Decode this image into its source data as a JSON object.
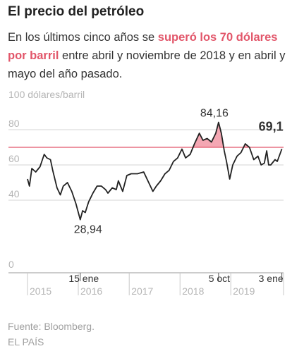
{
  "header": {
    "title": "El precio del petróleo",
    "subtitle_pre": "En los últimos cinco años se ",
    "subtitle_highlight": "superó los 70 dólares por barril",
    "subtitle_post": " entre abril y noviembre de 2018 y en abril y mayo del año pasado."
  },
  "footer": {
    "source": "Fuente: Bloomberg.",
    "brand": "EL PAÍS"
  },
  "colors": {
    "line": "#222222",
    "threshold": "#e2566a",
    "fill": "#f4a7b3",
    "grid": "#d4d4d4",
    "tick_text": "#b5b5b5"
  },
  "chart_data": {
    "type": "line",
    "unit_label": "100 dólares/barril",
    "ylim": [
      0,
      100
    ],
    "yticks": [
      0,
      40,
      60,
      80
    ],
    "ytick_labels": [
      "0",
      "40",
      "60",
      "80"
    ],
    "xlim": [
      "2015-01-01",
      "2020-01-15"
    ],
    "year_labels": [
      "2015",
      "2016",
      "2017",
      "2018",
      "2019"
    ],
    "threshold": 70,
    "grid": true,
    "annotations": [
      {
        "label": "15 ene",
        "date": "2016-01-15",
        "value": "28,94",
        "position": "below"
      },
      {
        "label": "5 oct",
        "date": "2018-10-05",
        "value": "84,16",
        "position": "above"
      },
      {
        "label": "3 ene",
        "date": "2020-01-03",
        "value": "69,1",
        "position": "right"
      }
    ],
    "series": [
      {
        "x": [
          "2015-01-01",
          "2015-01-15",
          "2015-02-01",
          "2015-03-01",
          "2015-04-01",
          "2015-05-01",
          "2015-05-20",
          "2015-06-15",
          "2015-07-01",
          "2015-08-01",
          "2015-08-25",
          "2015-09-15",
          "2015-10-15",
          "2015-11-15",
          "2015-12-15",
          "2016-01-15",
          "2016-02-01",
          "2016-02-20",
          "2016-03-15",
          "2016-04-15",
          "2016-05-15",
          "2016-06-15",
          "2016-07-15",
          "2016-08-01",
          "2016-09-01",
          "2016-09-30",
          "2016-10-15",
          "2016-11-15",
          "2016-12-15",
          "2017-01-15",
          "2017-03-01",
          "2017-04-15",
          "2017-05-15",
          "2017-06-20",
          "2017-07-15",
          "2017-08-15",
          "2017-09-15",
          "2017-10-15",
          "2017-11-15",
          "2017-12-15",
          "2018-01-15",
          "2018-02-10",
          "2018-03-15",
          "2018-04-15",
          "2018-05-20",
          "2018-06-15",
          "2018-07-15",
          "2018-08-15",
          "2018-09-15",
          "2018-10-05",
          "2018-10-25",
          "2018-11-15",
          "2018-12-01",
          "2018-12-24",
          "2019-01-15",
          "2019-02-15",
          "2019-03-15",
          "2019-04-15",
          "2019-05-15",
          "2019-06-15",
          "2019-07-15",
          "2019-08-07",
          "2019-08-30",
          "2019-09-16",
          "2019-09-30",
          "2019-10-15",
          "2019-11-15",
          "2019-12-01",
          "2019-12-15",
          "2020-01-03"
        ],
        "y": [
          52,
          48,
          58,
          56,
          59,
          66,
          64,
          63,
          57,
          47,
          43,
          48,
          50,
          45,
          38,
          28.94,
          34,
          33,
          39,
          44,
          48,
          48,
          46,
          44,
          47,
          46,
          51,
          45,
          54,
          55,
          55,
          56,
          51,
          45,
          48,
          51,
          55,
          57,
          62,
          64,
          69,
          64,
          66,
          72,
          78,
          74,
          75,
          73,
          78,
          84.16,
          78,
          68,
          62,
          52,
          60,
          65,
          67,
          72,
          70,
          63,
          65,
          60,
          61,
          68,
          60,
          60,
          63,
          62,
          65,
          69.1
        ]
      }
    ]
  }
}
